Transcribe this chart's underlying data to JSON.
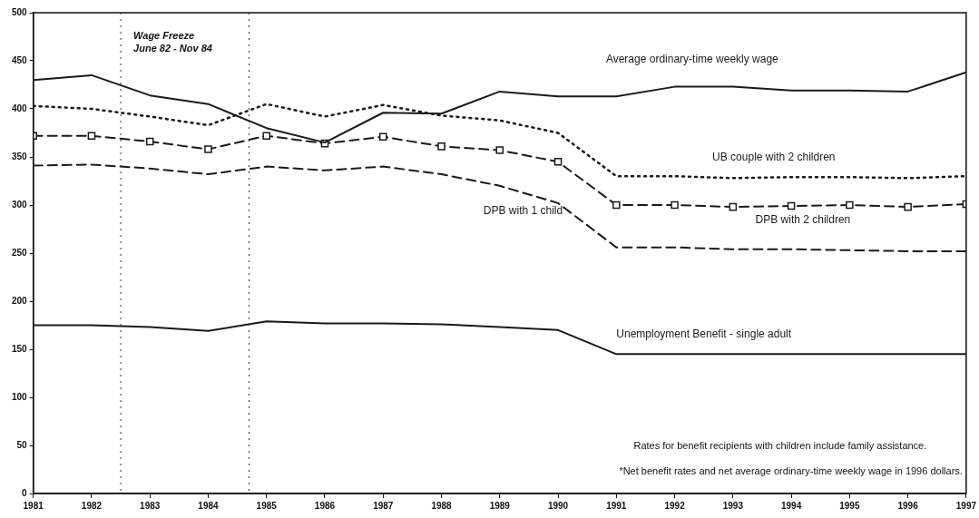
{
  "chart_data": {
    "type": "line",
    "x": [
      1981,
      1982,
      1983,
      1984,
      1985,
      1986,
      1987,
      1988,
      1989,
      1990,
      1991,
      1992,
      1993,
      1994,
      1995,
      1996,
      1997
    ],
    "xlim": [
      1981,
      1997
    ],
    "xticks": [
      1981,
      1982,
      1983,
      1984,
      1985,
      1986,
      1987,
      1988,
      1989,
      1990,
      1991,
      1992,
      1993,
      1994,
      1995,
      1996,
      1997
    ],
    "ylim": [
      0,
      500
    ],
    "yticks": [
      0,
      50,
      100,
      150,
      200,
      250,
      300,
      350,
      400,
      450,
      500
    ],
    "grid": false,
    "legend": false,
    "series": [
      {
        "name": "Average ordinary-time weekly wage",
        "color": "#1a1a1a",
        "line_style": "solid",
        "marker": "none",
        "values": [
          430,
          435,
          414,
          405,
          380,
          365,
          396,
          395,
          418,
          413,
          413,
          423,
          423,
          419,
          419,
          418,
          438
        ]
      },
      {
        "name": "UB couple with 2 children",
        "color": "#1a1a1a",
        "line_style": "dotted",
        "marker": "none",
        "values": [
          403,
          400,
          392,
          383,
          405,
          392,
          404,
          393,
          388,
          375,
          330,
          330,
          328,
          329,
          329,
          328,
          330
        ]
      },
      {
        "name": "DPB with 2 children",
        "color": "#1a1a1a",
        "line_style": "dashed",
        "marker": "square",
        "values": [
          372,
          372,
          366,
          358,
          372,
          364,
          371,
          361,
          357,
          345,
          300,
          300,
          298,
          299,
          300,
          298,
          301
        ]
      },
      {
        "name": "DPB with 1 child",
        "color": "#1a1a1a",
        "line_style": "dashed",
        "marker": "none",
        "values": [
          341,
          342,
          338,
          332,
          340,
          336,
          340,
          332,
          320,
          302,
          256,
          256,
          254,
          254,
          253,
          252,
          252
        ]
      },
      {
        "name": "Unemployment Benefit - single adult",
        "color": "#1a1a1a",
        "line_style": "solid",
        "marker": "none",
        "values": [
          175,
          175,
          173,
          169,
          179,
          177,
          177,
          176,
          173,
          170,
          145,
          145,
          145,
          145,
          145,
          145,
          145
        ]
      }
    ],
    "ref_lines": [
      {
        "axis": "x",
        "value": 1982.5,
        "label": "Wage Freeze\nJune 82 - Nov 84",
        "color": "#333333",
        "line_style": "dotted"
      },
      {
        "axis": "x",
        "value": 1984.7,
        "color": "#333333",
        "line_style": "dotted"
      }
    ],
    "annotations": [
      "Rates for benefit recipients with children include family assistance.",
      "*Net benefit rates and net average ordinary-time weekly wage in 1996 dollars."
    ]
  }
}
